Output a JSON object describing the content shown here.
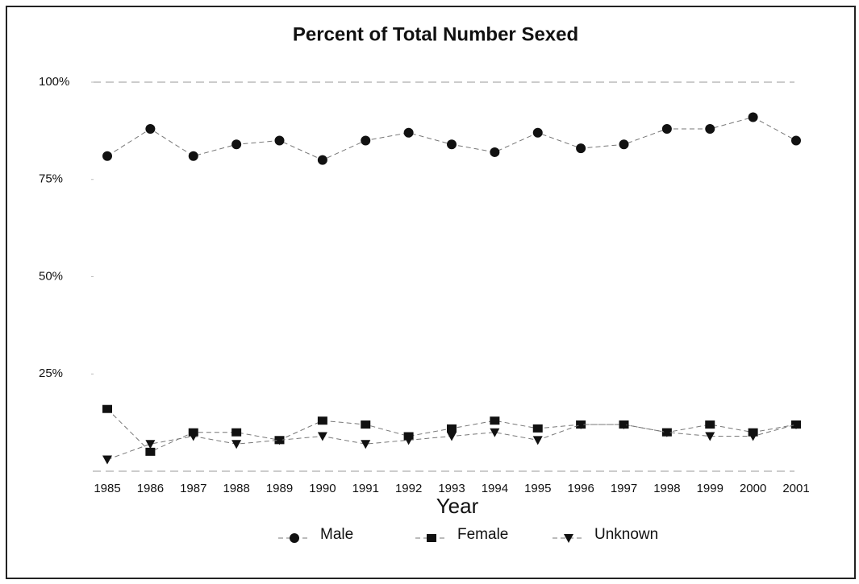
{
  "chart_data": {
    "type": "line",
    "title": "Percent of Total Number Sexed",
    "x_label": "Year",
    "categories": [
      "1985",
      "1986",
      "1987",
      "1988",
      "1989",
      "1990",
      "1991",
      "1992",
      "1993",
      "1994",
      "1995",
      "1996",
      "1997",
      "1998",
      "1999",
      "2000",
      "2001"
    ],
    "series": [
      {
        "name": "Male",
        "color": "#111111",
        "marker": "circle",
        "values": [
          81,
          88,
          81,
          84,
          85,
          80,
          85,
          87,
          84,
          82,
          87,
          83,
          84,
          88,
          88,
          91,
          85
        ]
      },
      {
        "name": "Female",
        "color": "#111111",
        "marker": "square",
        "values": [
          16,
          5,
          10,
          10,
          8,
          13,
          12,
          9,
          11,
          13,
          11,
          12,
          12,
          10,
          12,
          10,
          12
        ]
      },
      {
        "name": "Unknown",
        "color": "#111111",
        "marker": "triangle-down",
        "values": [
          3,
          7,
          9,
          7,
          8,
          9,
          7,
          8,
          9,
          10,
          8,
          12,
          12,
          10,
          9,
          9,
          12
        ]
      }
    ],
    "ylim": [
      0,
      100
    ],
    "yticks": [
      {
        "value": 25,
        "label": "25%"
      },
      {
        "value": 50,
        "label": "50%"
      },
      {
        "value": 75,
        "label": "75%"
      },
      {
        "value": 100,
        "label": "100%"
      }
    ],
    "grid": false,
    "legend": "bottom"
  }
}
